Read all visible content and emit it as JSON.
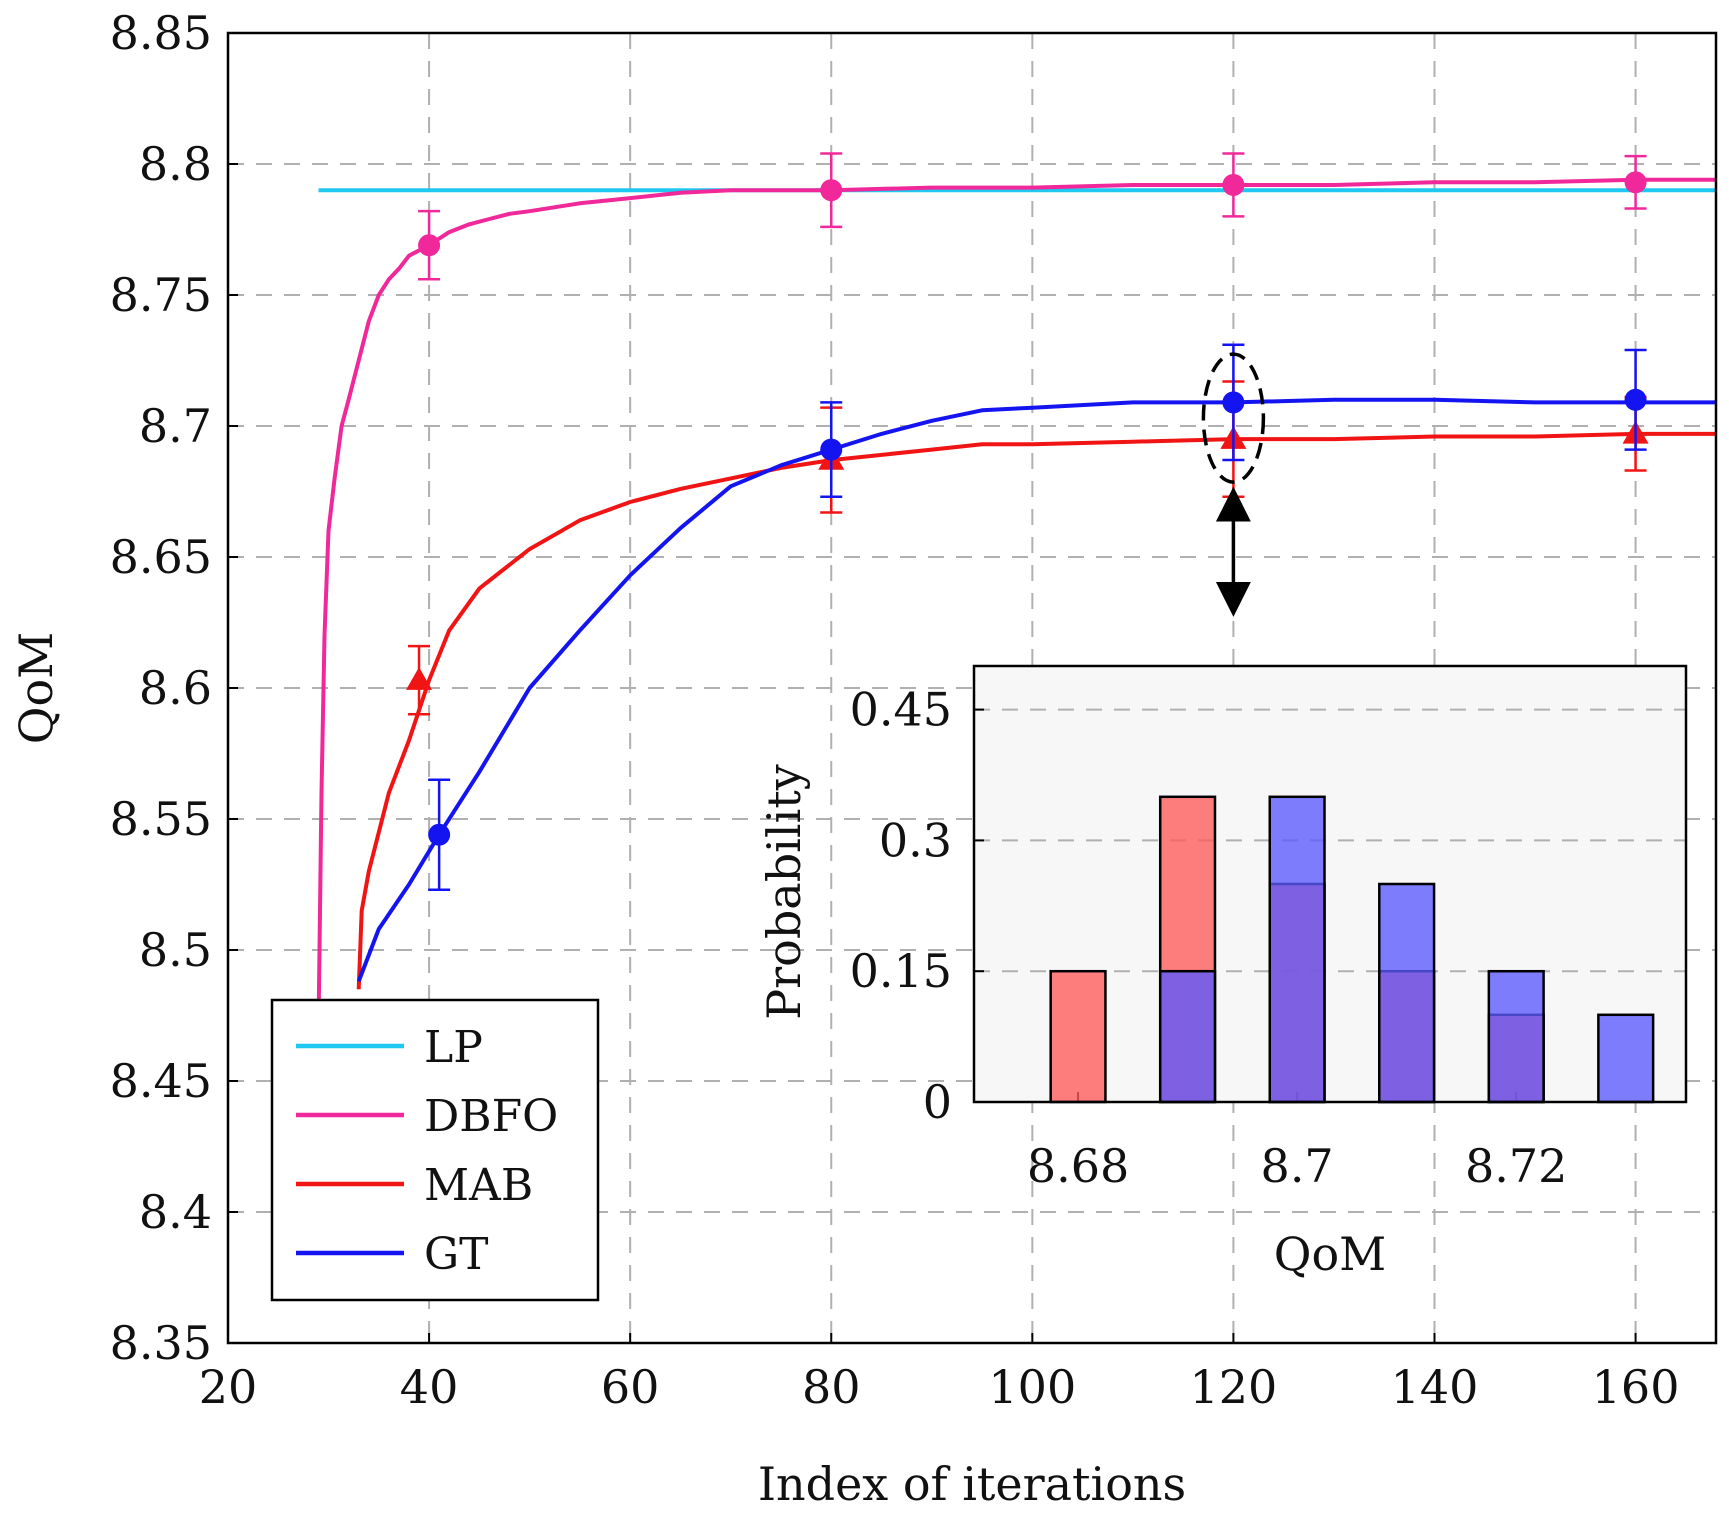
{
  "chart_data": [
    {
      "type": "line",
      "title": "",
      "xlabel": "Index of iterations",
      "ylabel": "QoM",
      "xlim": [
        20,
        168
      ],
      "ylim": [
        8.35,
        8.85
      ],
      "xticks": [
        20,
        40,
        60,
        80,
        100,
        120,
        140,
        160
      ],
      "yticks": [
        8.35,
        8.4,
        8.45,
        8.5,
        8.55,
        8.6,
        8.65,
        8.7,
        8.75,
        8.8,
        8.85
      ],
      "ytick_labels": [
        "8.35",
        "8.4",
        "8.45",
        "8.5",
        "8.55",
        "8.6",
        "8.65",
        "8.7",
        "8.75",
        "8.8",
        "8.85"
      ],
      "grid": true,
      "legend_position": "bottom-left",
      "series": [
        {
          "name": "LP",
          "color": "#1ec8f0",
          "marker": "none",
          "x": [
            29,
            168
          ],
          "y": [
            8.79,
            8.79
          ],
          "markers": []
        },
        {
          "name": "DBFO",
          "color": "#f0289a",
          "marker": "circle",
          "x": [
            29,
            29.3,
            29.6,
            30,
            30.6,
            31.3,
            32,
            33,
            34,
            35,
            36,
            37,
            38,
            40,
            42,
            44,
            46,
            48,
            50,
            55,
            60,
            65,
            70,
            75,
            80,
            90,
            100,
            110,
            120,
            130,
            140,
            150,
            160,
            168
          ],
          "y": [
            8.47,
            8.56,
            8.62,
            8.66,
            8.68,
            8.7,
            8.71,
            8.725,
            8.74,
            8.75,
            8.756,
            8.76,
            8.765,
            8.769,
            8.774,
            8.777,
            8.779,
            8.781,
            8.782,
            8.785,
            8.787,
            8.789,
            8.79,
            8.79,
            8.79,
            8.791,
            8.791,
            8.792,
            8.792,
            8.792,
            8.793,
            8.793,
            8.794,
            8.794
          ],
          "markers": [
            {
              "x": 40,
              "y": 8.769,
              "err": 0.013
            },
            {
              "x": 80,
              "y": 8.79,
              "err": 0.014
            },
            {
              "x": 120,
              "y": 8.792,
              "err": 0.012
            },
            {
              "x": 160,
              "y": 8.793,
              "err": 0.01
            }
          ]
        },
        {
          "name": "MAB",
          "color": "#f01414",
          "marker": "triangle",
          "x": [
            33,
            33.3,
            34,
            36,
            38,
            40,
            42,
            45,
            50,
            55,
            60,
            65,
            70,
            75,
            80,
            90,
            95,
            100,
            110,
            120,
            130,
            140,
            150,
            160,
            168
          ],
          "y": [
            8.485,
            8.515,
            8.53,
            8.56,
            8.58,
            8.603,
            8.622,
            8.638,
            8.653,
            8.664,
            8.671,
            8.676,
            8.68,
            8.684,
            8.687,
            8.691,
            8.693,
            8.693,
            8.694,
            8.695,
            8.695,
            8.696,
            8.696,
            8.697,
            8.697
          ],
          "markers": [
            {
              "x": 39,
              "y": 8.603,
              "err": 0.013
            },
            {
              "x": 80,
              "y": 8.687,
              "err": 0.02
            },
            {
              "x": 120,
              "y": 8.695,
              "err": 0.022
            },
            {
              "x": 160,
              "y": 8.697,
              "err": 0.014
            }
          ]
        },
        {
          "name": "GT",
          "color": "#1414f0",
          "marker": "circle",
          "x": [
            33,
            35,
            38,
            41,
            45,
            50,
            55,
            60,
            65,
            70,
            75,
            80,
            85,
            90,
            95,
            100,
            110,
            120,
            130,
            140,
            150,
            160,
            168
          ],
          "y": [
            8.488,
            8.508,
            8.525,
            8.544,
            8.568,
            8.6,
            8.622,
            8.643,
            8.661,
            8.677,
            8.685,
            8.691,
            8.697,
            8.702,
            8.706,
            8.707,
            8.709,
            8.709,
            8.71,
            8.71,
            8.709,
            8.709,
            8.709
          ],
          "markers": [
            {
              "x": 41,
              "y": 8.544,
              "err": 0.021
            },
            {
              "x": 80,
              "y": 8.691,
              "err": 0.018
            },
            {
              "x": 120,
              "y": 8.709,
              "err": 0.022
            },
            {
              "x": 160,
              "y": 8.71,
              "err": 0.019
            }
          ]
        }
      ],
      "annotations": [
        {
          "type": "dashed-ellipse",
          "x": 120,
          "y": 8.703
        },
        {
          "type": "double-arrow",
          "from": [
            120,
            8.674
          ],
          "to": [
            120,
            8.63
          ]
        }
      ]
    },
    {
      "type": "bar",
      "title": "",
      "xlabel": "QoM",
      "ylabel": "Probability",
      "xlim": [
        8.6705,
        8.7355
      ],
      "ylim": [
        0,
        0.5
      ],
      "xticks": [
        8.68,
        8.7,
        8.72
      ],
      "xtick_labels": [
        "8.68",
        "8.7",
        "8.72"
      ],
      "yticks": [
        0,
        0.15,
        0.3,
        0.45
      ],
      "ytick_labels": [
        "0",
        "0.15",
        "0.3",
        "0.45"
      ],
      "grid": true,
      "bar_width": 0.005,
      "categories": [
        8.68,
        8.69,
        8.7,
        8.71,
        8.72,
        8.73
      ],
      "series": [
        {
          "name": "MAB",
          "color": "#ff5a5a",
          "values": [
            0.15,
            0.35,
            0.25,
            0.15,
            0.1,
            0
          ]
        },
        {
          "name": "GT",
          "color": "#5a5aff",
          "values": [
            0,
            0.15,
            0.35,
            0.25,
            0.15,
            0.1
          ]
        }
      ]
    }
  ]
}
